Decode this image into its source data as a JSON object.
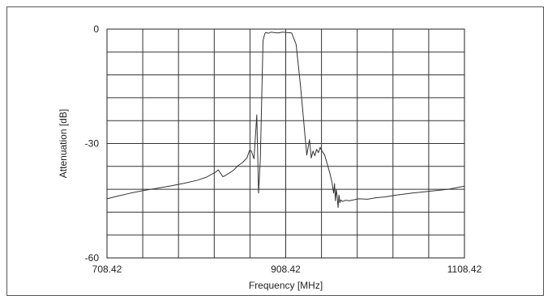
{
  "chart_data": {
    "type": "line",
    "title": "",
    "xlabel": "Frequency [MHz]",
    "ylabel": "Attenuation [dB]",
    "xlim": [
      708.42,
      1108.42
    ],
    "ylim": [
      -60,
      0
    ],
    "x_ticks": [
      708.42,
      908.42,
      1108.42
    ],
    "x_tick_labels": [
      "708.42",
      "908.42",
      "1108.42"
    ],
    "y_ticks": [
      0,
      -30,
      -60
    ],
    "y_tick_labels": [
      "0",
      "-30",
      "-60"
    ],
    "grid": true,
    "x_grid_divisions": 10,
    "y_grid_divisions": 10,
    "series": [
      {
        "color": "#333333",
        "x": [
          708.42,
          720,
          735,
          750,
          765,
          780,
          795,
          810,
          820,
          830,
          833,
          836,
          838,
          840,
          845,
          850,
          855,
          860,
          865,
          868,
          870,
          873,
          876,
          878,
          880,
          883,
          885,
          886,
          888,
          889,
          890,
          892,
          895,
          900,
          905,
          910,
          915,
          920,
          925,
          930,
          932,
          935,
          937,
          939,
          941,
          943,
          945,
          947,
          948,
          950,
          952,
          955,
          958,
          960,
          962,
          963,
          964,
          965,
          966,
          967,
          968,
          969,
          970,
          972,
          975,
          980,
          990,
          1000,
          1010,
          1020,
          1030,
          1050,
          1070,
          1090,
          1108.42
        ],
        "y": [
          -44.5,
          -43.8,
          -43.0,
          -42.3,
          -41.7,
          -41.1,
          -40.4,
          -39.6,
          -38.8,
          -37.5,
          -36.9,
          -38.0,
          -38.7,
          -38.5,
          -37.8,
          -37.0,
          -35.8,
          -35.0,
          -33.8,
          -31.8,
          -32.0,
          -34.0,
          -22.5,
          -43.0,
          -34.0,
          -3.0,
          -1.2,
          -0.9,
          -1.0,
          -1.1,
          -1.0,
          -0.8,
          -0.9,
          -1.0,
          -0.8,
          -0.9,
          -1.0,
          -4.0,
          -15.0,
          -28.0,
          -33.0,
          -29.0,
          -33.8,
          -32.0,
          -33.2,
          -31.5,
          -32.4,
          -31.0,
          -31.6,
          -32.3,
          -33.0,
          -35.5,
          -38.0,
          -40.0,
          -43.0,
          -40.5,
          -45.0,
          -42.0,
          -44.0,
          -46.8,
          -43.5,
          -45.5,
          -44.8,
          -45.2,
          -44.9,
          -45.0,
          -44.5,
          -44.6,
          -44.2,
          -44.0,
          -43.6,
          -43.0,
          -42.5,
          -42.0,
          -41.2
        ]
      }
    ]
  }
}
